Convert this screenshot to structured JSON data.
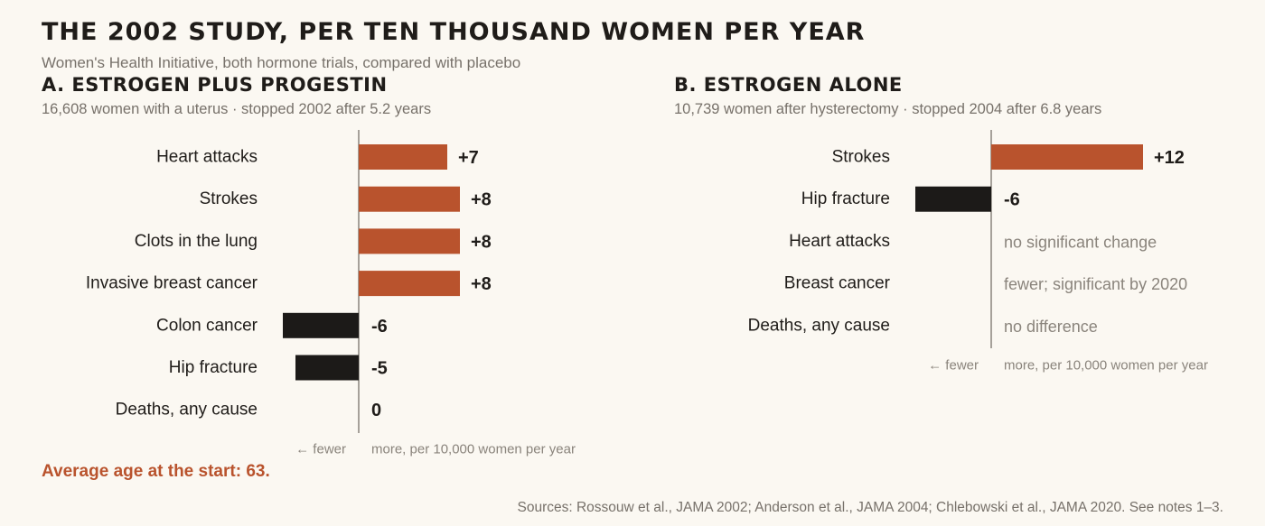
{
  "title": "THE 2002 STUDY, PER TEN THOUSAND WOMEN PER YEAR",
  "subtitle": "Women's Health Initiative, both hormone trials, compared with placebo",
  "colors": {
    "increase": "#b9532d",
    "decrease": "#1c1a18",
    "axis": "#8a847c"
  },
  "chart_data": [
    {
      "type": "bar",
      "orientation": "horizontal",
      "title": "A. ESTROGEN PLUS PROGESTIN",
      "subtitle": "16,608 women with a uterus · stopped 2002 after 5.2 years",
      "axis_left_label": "← fewer",
      "axis_right_label": "more, per 10,000 women per year",
      "categories": [
        "Heart attacks",
        "Strokes",
        "Clots in the lung",
        "Invasive breast cancer",
        "Colon cancer",
        "Hip fracture",
        "Deaths, any cause"
      ],
      "values": [
        7,
        8,
        8,
        8,
        -6,
        -5,
        0
      ],
      "labels": [
        "+7",
        "+8",
        "+8",
        "+8",
        "-6",
        "-5",
        "0"
      ],
      "notes": [
        null,
        null,
        null,
        null,
        null,
        null,
        null
      ]
    },
    {
      "type": "bar",
      "orientation": "horizontal",
      "title": "B. ESTROGEN ALONE",
      "subtitle": "10,739 women after hysterectomy · stopped 2004 after 6.8 years",
      "axis_left_label": "← fewer",
      "axis_right_label": "more, per 10,000 women per year",
      "categories": [
        "Strokes",
        "Hip fracture",
        "Heart attacks",
        "Breast cancer",
        "Deaths, any cause"
      ],
      "values": [
        12,
        -6,
        null,
        null,
        null
      ],
      "labels": [
        "+12",
        "-6",
        "",
        "",
        ""
      ],
      "notes": [
        null,
        null,
        "no significant change",
        "fewer; significant by 2020",
        "no difference"
      ]
    }
  ],
  "footnote": "Average age at the start: 63.",
  "sources": "Sources: Rossouw et al., JAMA 2002; Anderson et al., JAMA 2004; Chlebowski et al., JAMA 2020. See notes 1–3."
}
